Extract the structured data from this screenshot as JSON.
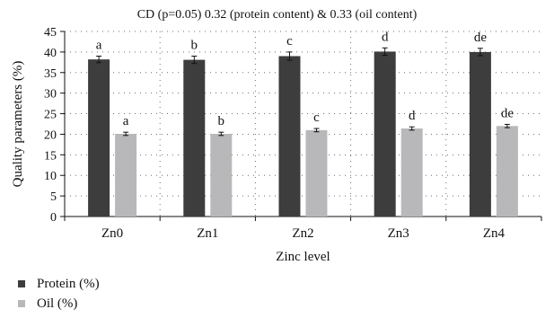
{
  "chart_data": {
    "type": "bar",
    "title": "CD (p=0.05) 0.32 (protein content) & 0.33 (oil content)",
    "xlabel": "Zinc level",
    "ylabel": "Quality parameters (%)",
    "categories": [
      "Zn0",
      "Zn1",
      "Zn2",
      "Zn3",
      "Zn4"
    ],
    "ylim": [
      0,
      45
    ],
    "y_ticks": [
      0,
      5,
      10,
      15,
      20,
      25,
      30,
      35,
      40,
      45
    ],
    "grid": {
      "horizontal": "dotted",
      "vertical": "dotted"
    },
    "legend_position": "bottom-left",
    "error_bars": true,
    "series": [
      {
        "name": "Protein (%)",
        "color": "#3d3d3d",
        "values": [
          38.2,
          38.1,
          39.0,
          40.1,
          40.0
        ],
        "errors": [
          0.8,
          0.9,
          1.0,
          0.9,
          0.9
        ],
        "labels": [
          "a",
          "b",
          "c",
          "d",
          "de"
        ]
      },
      {
        "name": "Oil (%)",
        "color": "#b8b8bb",
        "values": [
          20.1,
          20.1,
          21.0,
          21.4,
          22.0
        ],
        "errors": [
          0.4,
          0.4,
          0.4,
          0.4,
          0.4
        ],
        "labels": [
          "a",
          "b",
          "c",
          "d",
          "de"
        ]
      }
    ]
  }
}
